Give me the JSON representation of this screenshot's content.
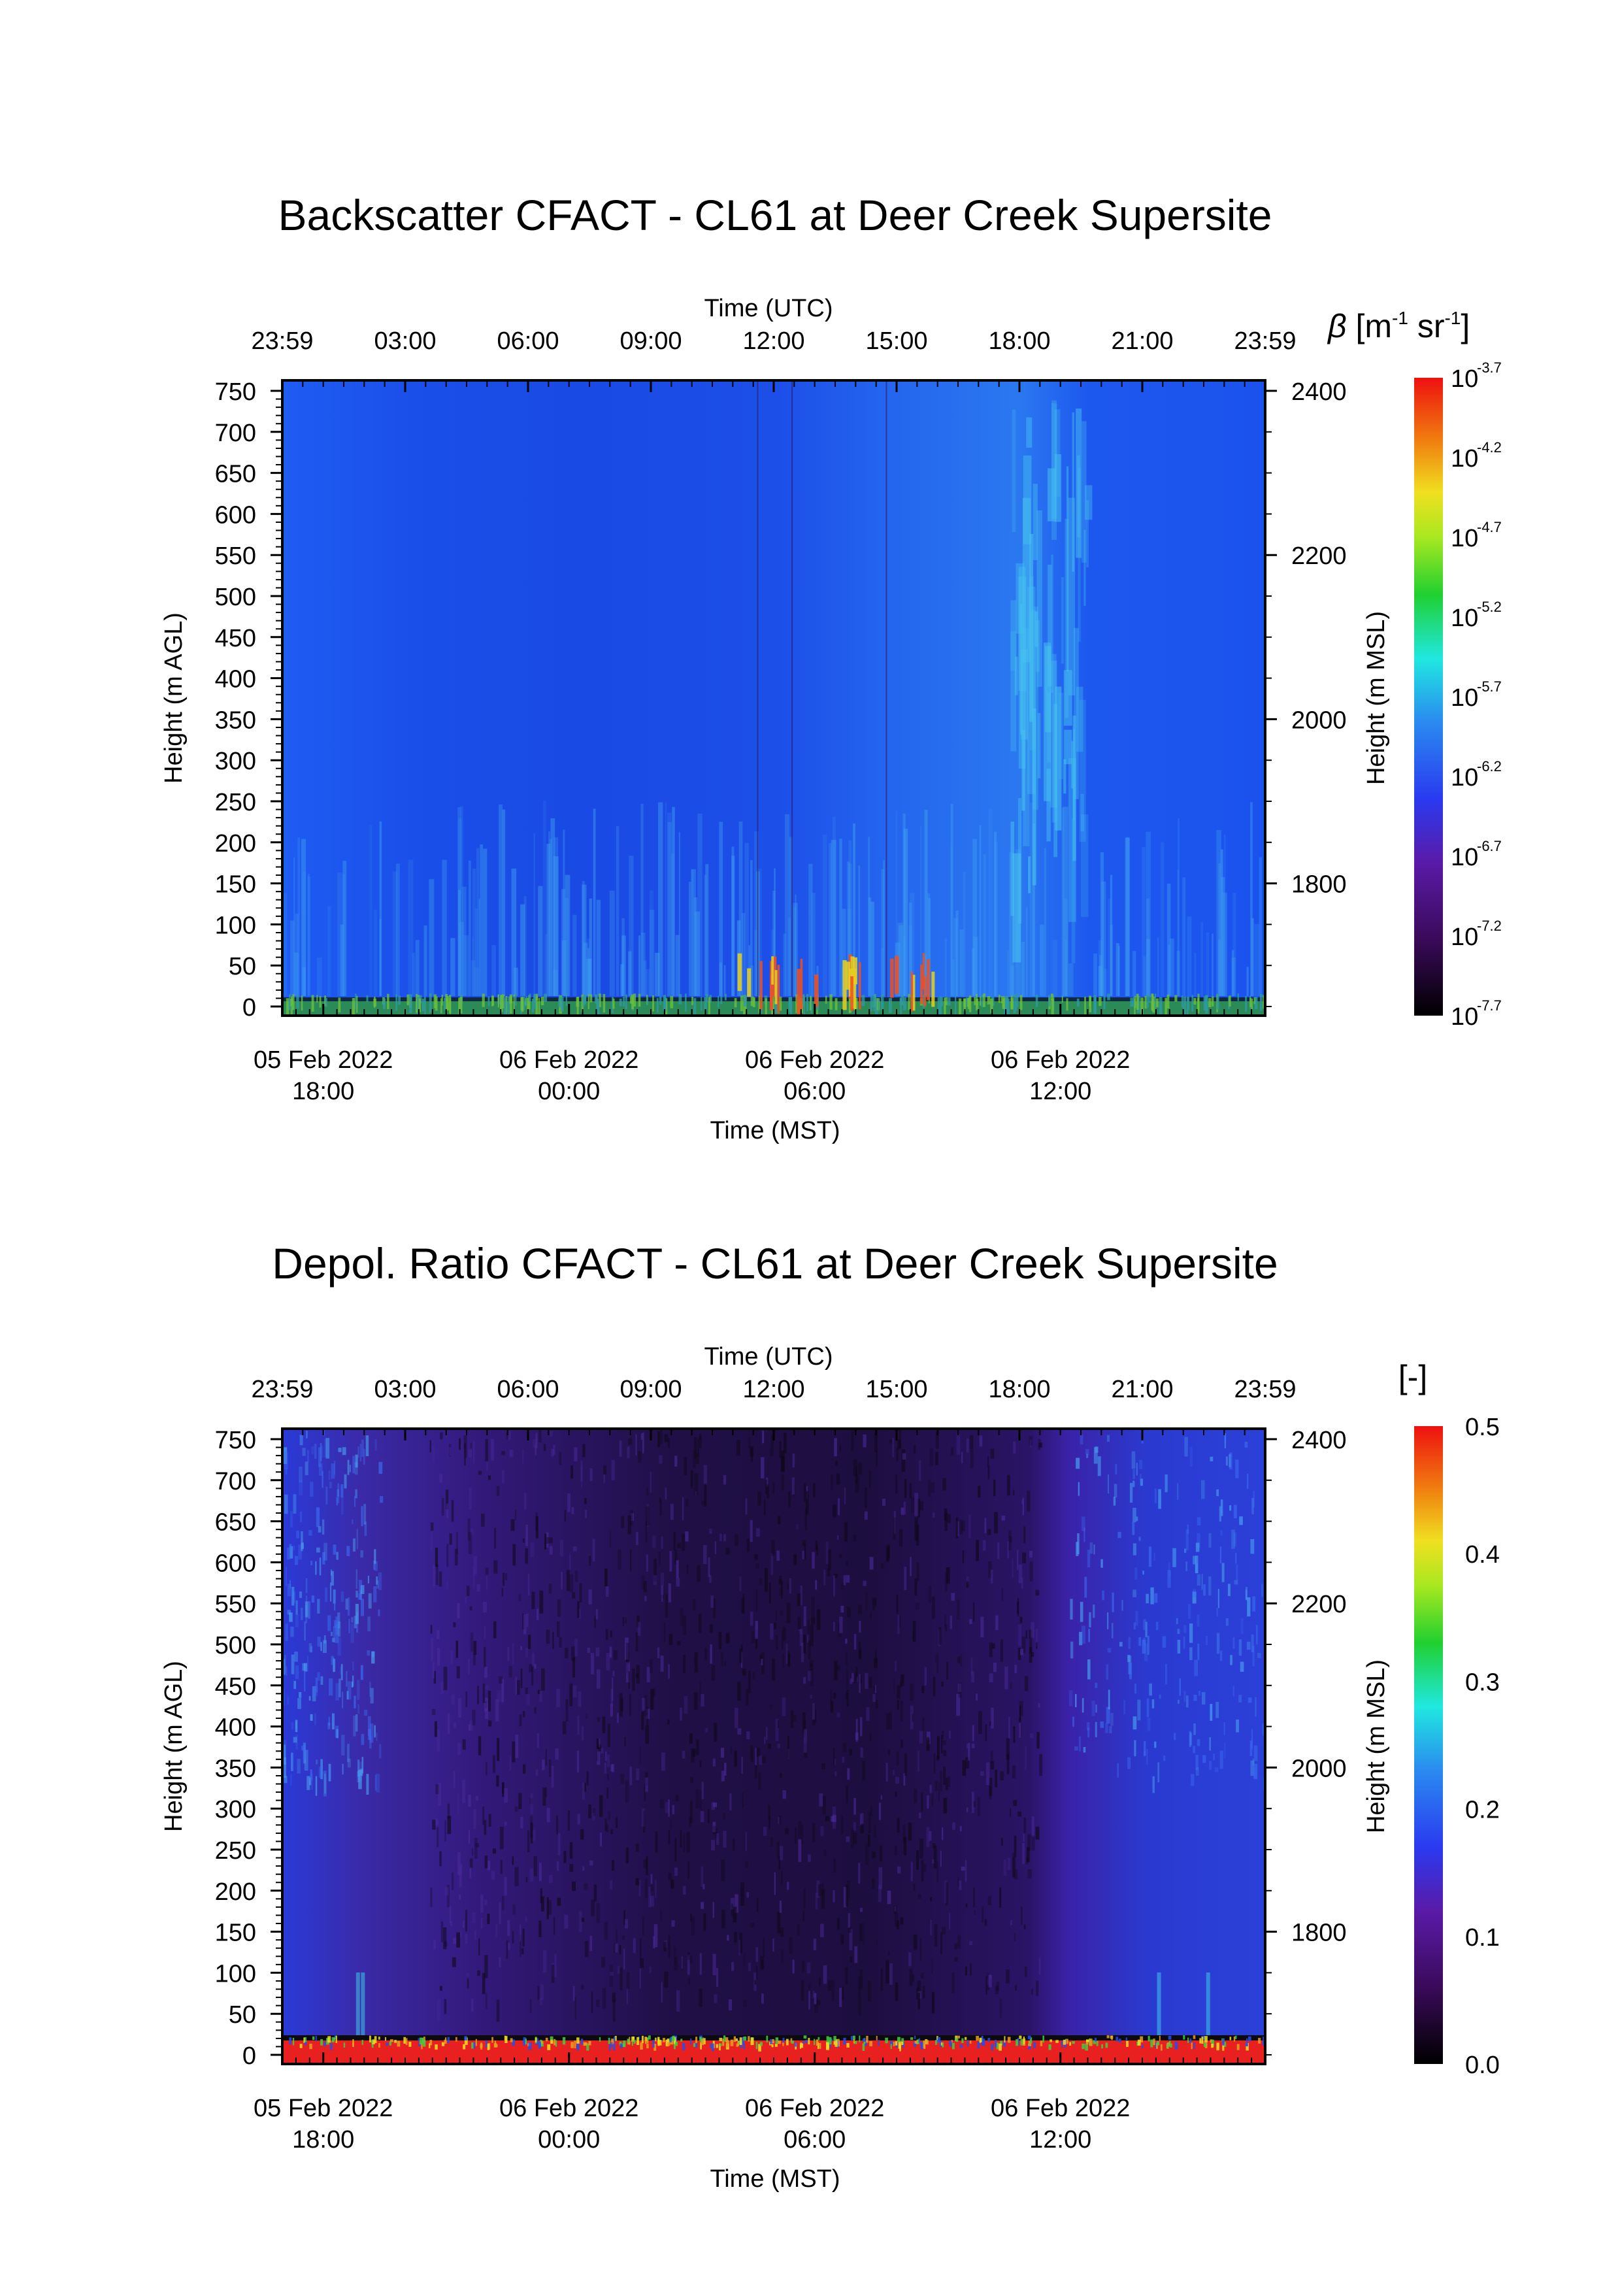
{
  "chart_data": [
    {
      "type": "heatmap",
      "title": "Backscatter CFACT - CL61 at Deer Creek Supersite",
      "top_axis": {
        "label": "Time (UTC)",
        "ticks": [
          "23:59",
          "03:00",
          "06:00",
          "09:00",
          "12:00",
          "15:00",
          "18:00",
          "21:00",
          "23:59"
        ]
      },
      "bottom_axis": {
        "label": "Time (MST)",
        "ticks": [
          {
            "date": "05 Feb 2022",
            "time": "18:00"
          },
          {
            "date": "06 Feb 2022",
            "time": "00:00"
          },
          {
            "date": "06 Feb 2022",
            "time": "06:00"
          },
          {
            "date": "06 Feb 2022",
            "time": "12:00"
          }
        ]
      },
      "x_range_utc": [
        "2022-02-05 23:59",
        "2022-02-06 23:59"
      ],
      "left_axis": {
        "label": "Height (m AGL)",
        "ticks": [
          "0",
          "50",
          "100",
          "150",
          "200",
          "250",
          "300",
          "350",
          "400",
          "450",
          "500",
          "550",
          "600",
          "650",
          "700",
          "750"
        ],
        "range": [
          0,
          750
        ]
      },
      "right_axis": {
        "label": "Height (m MSL)",
        "ticks": [
          "1800",
          "2000",
          "2200",
          "2400"
        ]
      },
      "colorbar": {
        "label_symbol": "β",
        "label_units": "[m",
        "label_exp1": "-1",
        "label_mid": " sr",
        "label_exp2": "-1",
        "label_end": "]",
        "scale": "log",
        "tick_base": "10",
        "ticks": [
          "-3.7",
          "-4.2",
          "-4.7",
          "-5.2",
          "-5.7",
          "-6.2",
          "-6.7",
          "-7.2",
          "-7.7"
        ],
        "range": [
          -7.7,
          -3.7
        ]
      },
      "colors": {
        "background": "#1c55f0",
        "band_cyan": "#46c2f0",
        "surface_green": "#3aa83a"
      }
    },
    {
      "type": "heatmap",
      "title": "Depol. Ratio CFACT - CL61 at Deer Creek Supersite",
      "top_axis": {
        "label": "Time (UTC)",
        "ticks": [
          "23:59",
          "03:00",
          "06:00",
          "09:00",
          "12:00",
          "15:00",
          "18:00",
          "21:00",
          "23:59"
        ]
      },
      "bottom_axis": {
        "label": "Time (MST)",
        "ticks": [
          {
            "date": "05 Feb 2022",
            "time": "18:00"
          },
          {
            "date": "06 Feb 2022",
            "time": "00:00"
          },
          {
            "date": "06 Feb 2022",
            "time": "06:00"
          },
          {
            "date": "06 Feb 2022",
            "time": "12:00"
          }
        ]
      },
      "x_range_utc": [
        "2022-02-05 23:59",
        "2022-02-06 23:59"
      ],
      "left_axis": {
        "label": "Height (m AGL)",
        "ticks": [
          "0",
          "50",
          "100",
          "150",
          "200",
          "250",
          "300",
          "350",
          "400",
          "450",
          "500",
          "550",
          "600",
          "650",
          "700",
          "750"
        ],
        "range": [
          0,
          750
        ]
      },
      "right_axis": {
        "label": "Height (m MSL)",
        "ticks": [
          "1800",
          "2000",
          "2200",
          "2400"
        ]
      },
      "colorbar": {
        "label": "[-]",
        "scale": "linear",
        "ticks": [
          "0.0",
          "0.1",
          "0.2",
          "0.3",
          "0.4",
          "0.5"
        ],
        "range": [
          0.0,
          0.5
        ]
      },
      "colors": {
        "background": "#3a1a7a",
        "dark_core": "#1a0d2a",
        "edge_blue": "#2a3ad0",
        "surface_red": "#e82020"
      }
    }
  ]
}
